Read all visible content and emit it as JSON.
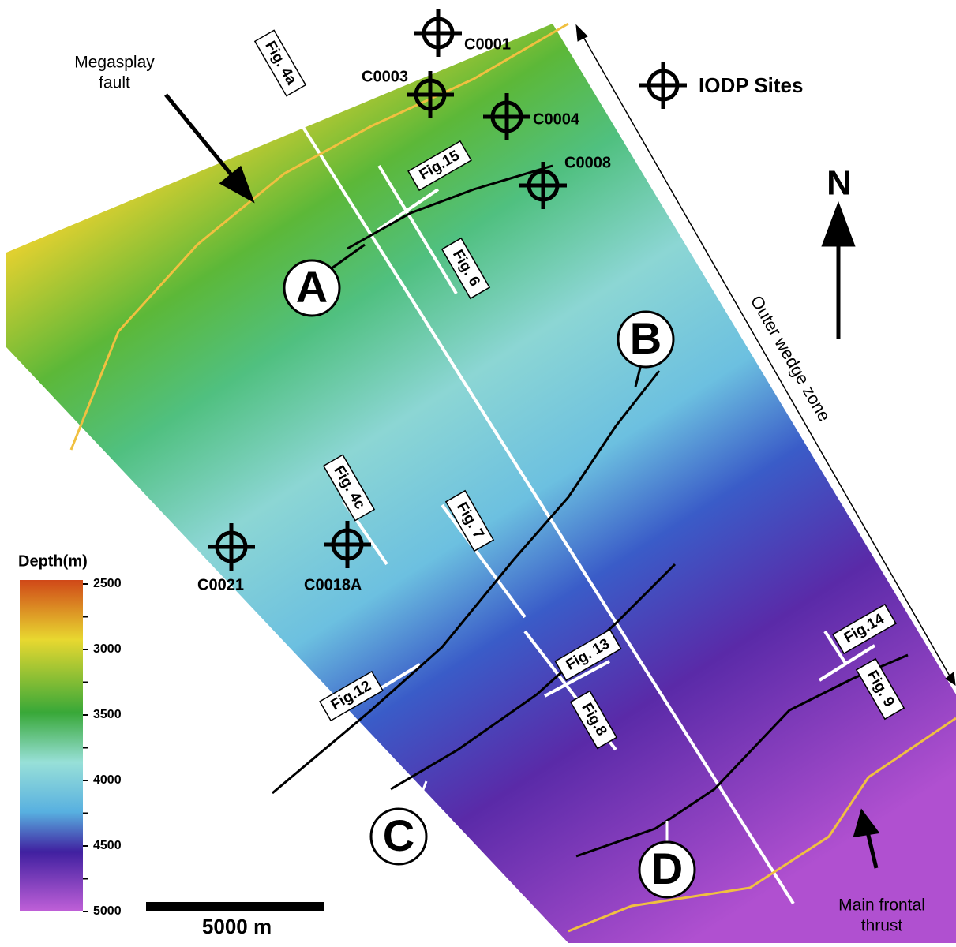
{
  "map": {
    "callouts": {
      "megasplay": [
        "Megasplay",
        "fault"
      ],
      "frontal": [
        "Main frontal",
        "thrust"
      ],
      "outer_wedge": "Outer wedge zone",
      "north": "N"
    },
    "sites": {
      "legend": "IODP Sites",
      "labels": [
        "C0001",
        "C0003",
        "C0004",
        "C0008",
        "C0021",
        "C0018A"
      ]
    },
    "letters": [
      "A",
      "B",
      "C",
      "D"
    ],
    "figures": [
      "Fig. 4a",
      "Fig.15",
      "Fig. 6",
      "Fig. 4c",
      "Fig. 7",
      "Fig. 13",
      "Fig.8",
      "Fig.12",
      "Fig.14",
      "Fig. 9"
    ],
    "scale_bar": "5000 m",
    "colorbar": {
      "title": "Depth(m)",
      "ticks": [
        2500,
        3000,
        3500,
        4000,
        4500,
        5000
      ]
    }
  }
}
